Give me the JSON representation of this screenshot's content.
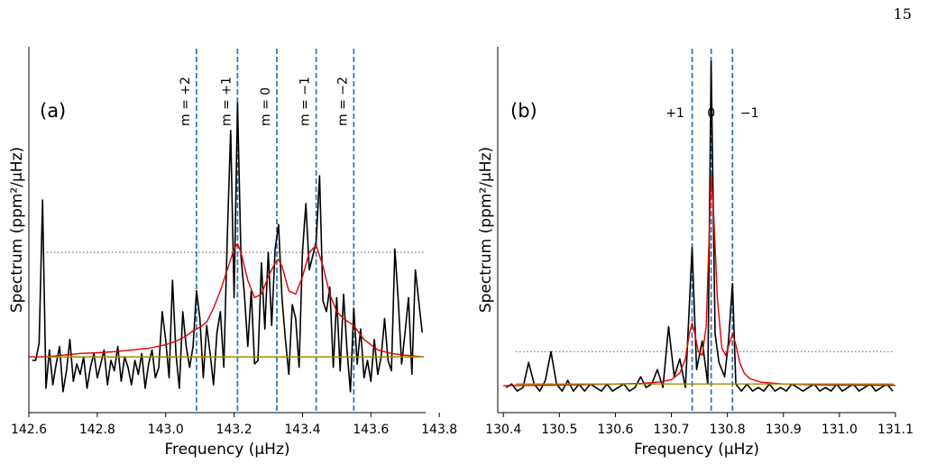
{
  "page_number": "15",
  "chart_data": [
    {
      "type": "line",
      "panel_label": "(a)",
      "xlabel": "Frequency (μHz)",
      "ylabel": "Spectrum (ppm²/μHz)",
      "xlim": [
        142.6,
        143.76
      ],
      "xticks": [
        "142.6",
        "142.8",
        "143.0",
        "143.2",
        "143.4",
        "143.6",
        "143.8"
      ],
      "xtick_values": [
        142.6,
        142.8,
        143.0,
        143.2,
        143.4,
        143.6,
        143.8
      ],
      "ylim": [
        -0.05,
        1.0
      ],
      "y_tick_labels_shown": false,
      "grid": false,
      "mode_lines": [
        143.09,
        143.21,
        143.325,
        143.44,
        143.55
      ],
      "mode_labels": [
        "m = +2",
        "m = +1",
        "m = 0",
        "m = −1",
        "m = −2"
      ],
      "mode_label_orientation": "vertical",
      "threshold_level": 0.41,
      "background_level": 0.11,
      "series": [
        {
          "role": "observed spectrum",
          "color": "#000000",
          "x": [
            142.61,
            142.62,
            142.63,
            142.64,
            142.65,
            142.66,
            142.67,
            142.68,
            142.69,
            142.7,
            142.71,
            142.72,
            142.73,
            142.74,
            142.75,
            142.76,
            142.77,
            142.78,
            142.79,
            142.8,
            142.81,
            142.82,
            142.83,
            142.84,
            142.85,
            142.86,
            142.87,
            142.88,
            142.89,
            142.9,
            142.91,
            142.92,
            142.93,
            142.94,
            142.95,
            142.96,
            142.97,
            142.98,
            142.99,
            143.0,
            143.01,
            143.02,
            143.03,
            143.04,
            143.05,
            143.06,
            143.07,
            143.08,
            143.09,
            143.1,
            143.11,
            143.12,
            143.13,
            143.14,
            143.15,
            143.16,
            143.17,
            143.18,
            143.19,
            143.2,
            143.21,
            143.22,
            143.23,
            143.24,
            143.25,
            143.26,
            143.27,
            143.28,
            143.29,
            143.3,
            143.31,
            143.32,
            143.33,
            143.34,
            143.35,
            143.36,
            143.37,
            143.38,
            143.39,
            143.4,
            143.41,
            143.42,
            143.43,
            143.44,
            143.45,
            143.46,
            143.47,
            143.48,
            143.49,
            143.5,
            143.51,
            143.52,
            143.53,
            143.54,
            143.55,
            143.56,
            143.57,
            143.58,
            143.59,
            143.6,
            143.61,
            143.62,
            143.63,
            143.64,
            143.65,
            143.66,
            143.67,
            143.68,
            143.69,
            143.7,
            143.71,
            143.72,
            143.73,
            143.74,
            143.75
          ],
          "y": [
            0.1,
            0.1,
            0.15,
            0.56,
            0.02,
            0.13,
            0.03,
            0.09,
            0.14,
            0.01,
            0.07,
            0.16,
            0.04,
            0.09,
            0.06,
            0.11,
            0.02,
            0.08,
            0.12,
            0.05,
            0.09,
            0.13,
            0.03,
            0.1,
            0.07,
            0.14,
            0.04,
            0.11,
            0.08,
            0.03,
            0.1,
            0.06,
            0.12,
            0.02,
            0.09,
            0.13,
            0.05,
            0.08,
            0.24,
            0.16,
            0.05,
            0.33,
            0.12,
            0.02,
            0.24,
            0.14,
            0.08,
            0.14,
            0.3,
            0.22,
            0.05,
            0.2,
            0.12,
            0.03,
            0.18,
            0.24,
            0.08,
            0.45,
            0.76,
            0.28,
            0.84,
            0.4,
            0.29,
            0.14,
            0.3,
            0.09,
            0.1,
            0.38,
            0.19,
            0.41,
            0.2,
            0.42,
            0.49,
            0.28,
            0.16,
            0.06,
            0.26,
            0.22,
            0.08,
            0.41,
            0.55,
            0.36,
            0.4,
            0.44,
            0.63,
            0.27,
            0.24,
            0.31,
            0.08,
            0.28,
            0.07,
            0.29,
            0.13,
            0.01,
            0.25,
            0.09,
            0.19,
            0.05,
            0.1,
            0.04,
            0.16,
            0.06,
            0.11,
            0.22,
            0.1,
            0.07,
            0.42,
            0.27,
            0.09,
            0.18,
            0.28,
            0.06,
            0.36,
            0.27,
            0.18
          ]
        },
        {
          "role": "fitted model",
          "color": "#e00000",
          "x": [
            142.6,
            142.65,
            142.7,
            142.75,
            142.8,
            142.85,
            142.9,
            142.95,
            143.0,
            143.03,
            143.06,
            143.08,
            143.1,
            143.12,
            143.14,
            143.16,
            143.18,
            143.2,
            143.21,
            143.22,
            143.24,
            143.26,
            143.28,
            143.3,
            143.32,
            143.33,
            143.34,
            143.36,
            143.38,
            143.4,
            143.42,
            143.44,
            143.46,
            143.48,
            143.5,
            143.52,
            143.55,
            143.58,
            143.62,
            143.66,
            143.7,
            143.75
          ],
          "y": [
            0.11,
            0.11,
            0.115,
            0.12,
            0.122,
            0.125,
            0.13,
            0.135,
            0.145,
            0.155,
            0.17,
            0.185,
            0.195,
            0.21,
            0.25,
            0.3,
            0.36,
            0.42,
            0.435,
            0.41,
            0.33,
            0.28,
            0.29,
            0.34,
            0.38,
            0.39,
            0.37,
            0.3,
            0.29,
            0.34,
            0.41,
            0.43,
            0.37,
            0.29,
            0.24,
            0.22,
            0.2,
            0.16,
            0.13,
            0.12,
            0.115,
            0.11
          ]
        }
      ]
    },
    {
      "type": "line",
      "panel_label": "(b)",
      "xlabel": "Frequency (μHz)",
      "ylabel": "Spectrum (ppm²/μHz)",
      "xlim": [
        130.39,
        131.1
      ],
      "xticks": [
        "130.4",
        "130.5",
        "130.6",
        "130.7",
        "130.8",
        "130.9",
        "131.0",
        "131.1"
      ],
      "xtick_values": [
        130.4,
        130.5,
        130.6,
        130.7,
        130.8,
        130.9,
        131.0,
        131.1
      ],
      "ylim": [
        -0.02,
        1.0
      ],
      "y_tick_labels_shown": false,
      "grid": false,
      "mode_lines": [
        130.737,
        130.771,
        130.809
      ],
      "mode_labels": [
        "+1",
        "0",
        "−1"
      ],
      "mode_label_orientation": "horizontal",
      "threshold_level": 0.15,
      "background_level": 0.06,
      "series": [
        {
          "role": "observed spectrum",
          "color": "#000000",
          "x": [
            130.405,
            130.415,
            130.425,
            130.435,
            130.445,
            130.455,
            130.465,
            130.475,
            130.485,
            130.495,
            130.505,
            130.515,
            130.525,
            130.535,
            130.545,
            130.555,
            130.565,
            130.575,
            130.585,
            130.595,
            130.605,
            130.615,
            130.625,
            130.635,
            130.645,
            130.655,
            130.665,
            130.675,
            130.685,
            130.695,
            130.705,
            130.715,
            130.725,
            130.737,
            130.745,
            130.755,
            130.765,
            130.771,
            130.778,
            130.785,
            130.795,
            130.802,
            130.809,
            130.815,
            130.825,
            130.835,
            130.845,
            130.855,
            130.865,
            130.875,
            130.885,
            130.895,
            130.905,
            130.915,
            130.925,
            130.935,
            130.945,
            130.955,
            130.965,
            130.975,
            130.985,
            130.995,
            131.005,
            131.015,
            131.025,
            131.035,
            131.045,
            131.055,
            131.065,
            131.075,
            131.085,
            131.095
          ],
          "y": [
            0.05,
            0.06,
            0.04,
            0.05,
            0.12,
            0.06,
            0.04,
            0.07,
            0.15,
            0.06,
            0.04,
            0.07,
            0.04,
            0.06,
            0.04,
            0.06,
            0.05,
            0.04,
            0.06,
            0.04,
            0.05,
            0.06,
            0.04,
            0.05,
            0.08,
            0.05,
            0.06,
            0.1,
            0.05,
            0.22,
            0.08,
            0.13,
            0.05,
            0.44,
            0.1,
            0.18,
            0.06,
            0.96,
            0.2,
            0.12,
            0.08,
            0.18,
            0.34,
            0.06,
            0.04,
            0.06,
            0.04,
            0.05,
            0.04,
            0.06,
            0.04,
            0.05,
            0.04,
            0.06,
            0.05,
            0.04,
            0.05,
            0.06,
            0.04,
            0.05,
            0.04,
            0.06,
            0.04,
            0.05,
            0.06,
            0.04,
            0.05,
            0.06,
            0.04,
            0.05,
            0.06,
            0.04
          ]
        },
        {
          "role": "fitted model",
          "color": "#e00000",
          "x": [
            130.4,
            130.5,
            130.6,
            130.65,
            130.68,
            130.7,
            130.715,
            130.725,
            130.732,
            130.737,
            130.742,
            130.748,
            130.755,
            130.762,
            130.768,
            130.771,
            130.775,
            130.782,
            130.79,
            130.797,
            130.803,
            130.809,
            130.815,
            130.822,
            130.83,
            130.84,
            130.86,
            130.9,
            130.95,
            131.0,
            131.1
          ],
          "y": [
            0.055,
            0.057,
            0.06,
            0.062,
            0.066,
            0.072,
            0.09,
            0.13,
            0.2,
            0.23,
            0.2,
            0.15,
            0.14,
            0.22,
            0.5,
            0.64,
            0.55,
            0.3,
            0.16,
            0.14,
            0.17,
            0.2,
            0.17,
            0.12,
            0.09,
            0.075,
            0.065,
            0.06,
            0.058,
            0.057,
            0.056
          ]
        }
      ]
    }
  ]
}
